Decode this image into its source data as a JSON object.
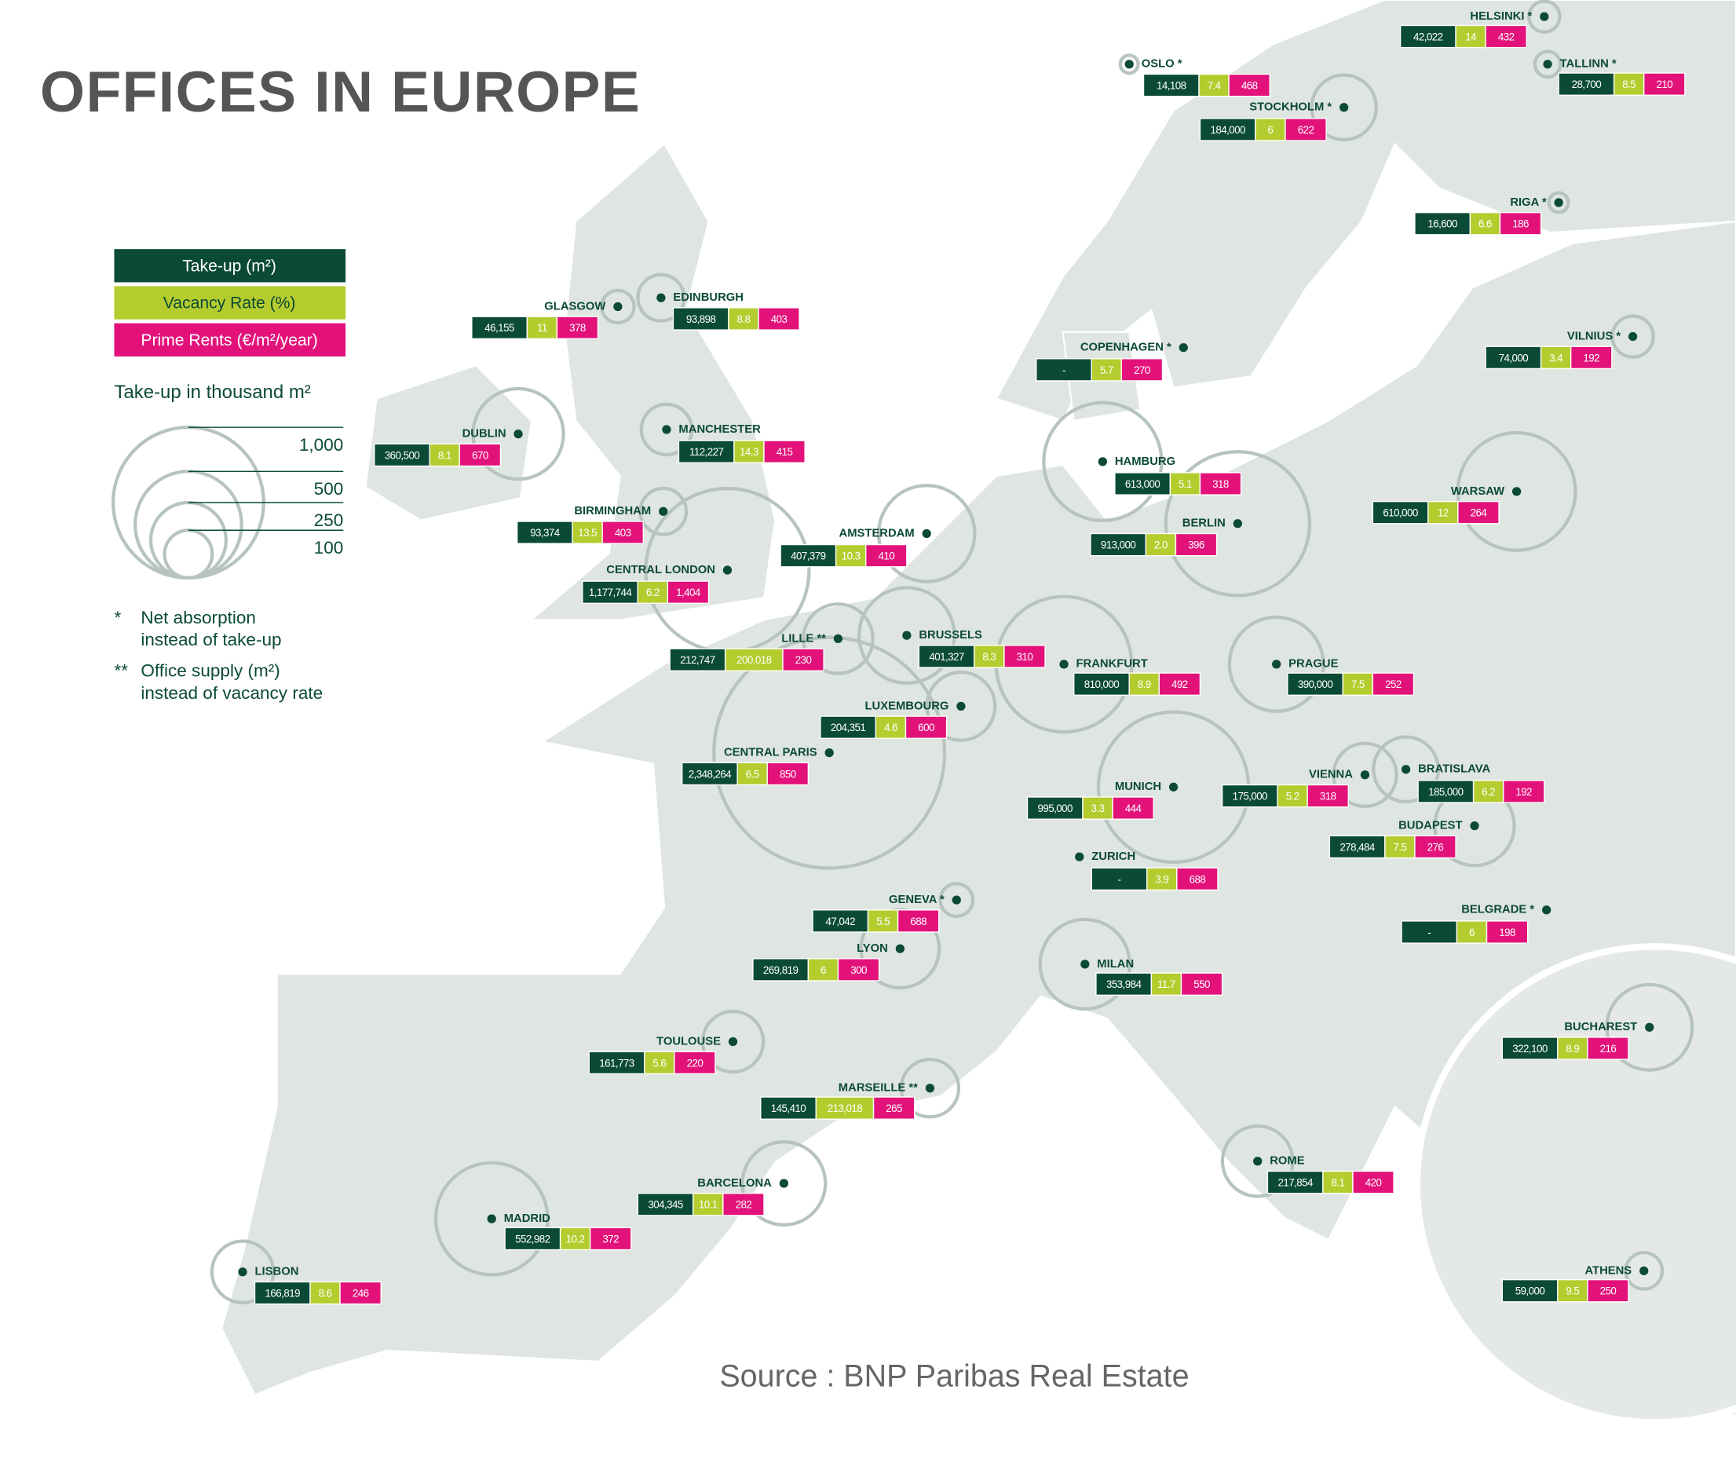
{
  "title": "OFFICES IN EUROPE",
  "legend": {
    "items": [
      "Take-up (m²)",
      "Vacancy Rate (%)",
      "Prime Rents (€/m²/year)"
    ],
    "size_title": "Take-up in thousand m²",
    "sizes": [
      {
        "value": 1000,
        "label": "1,000"
      },
      500,
      250,
      100
    ],
    "notes": [
      {
        "mark": "*",
        "lines": [
          "Net absorption",
          "instead of take-up"
        ]
      },
      {
        "mark": "**",
        "lines": [
          "Office supply (m²)",
          "instead of vacancy rate"
        ]
      }
    ]
  },
  "cities": [
    {
      "name": "HELSINKI *",
      "take_up": "42,022",
      "vacancy": "14",
      "rent": "432"
    },
    {
      "name": "OSLO *",
      "take_up": "14,108",
      "vacancy": "7.4",
      "rent": "468"
    },
    {
      "name": "TALLINN *",
      "take_up": "28,700",
      "vacancy": "8.5",
      "rent": "210"
    },
    {
      "name": "STOCKHOLM *",
      "take_up": "184,000",
      "vacancy": "6",
      "rent": "622"
    },
    {
      "name": "RIGA *",
      "take_up": "16,600",
      "vacancy": "6.6",
      "rent": "186"
    },
    {
      "name": "GLASGOW",
      "take_up": "46,155",
      "vacancy": "11",
      "rent": "378"
    },
    {
      "name": "EDINBURGH",
      "take_up": "93,898",
      "vacancy": "8.8",
      "rent": "403"
    },
    {
      "name": "COPENHAGEN *",
      "take_up": "-",
      "vacancy": "5.7",
      "rent": "270"
    },
    {
      "name": "VILNIUS *",
      "take_up": "74,000",
      "vacancy": "3.4",
      "rent": "192"
    },
    {
      "name": "DUBLIN",
      "take_up": "360,500",
      "vacancy": "8.1",
      "rent": "670"
    },
    {
      "name": "MANCHESTER",
      "take_up": "112,227",
      "vacancy": "14.3",
      "rent": "415"
    },
    {
      "name": "HAMBURG",
      "take_up": "613,000",
      "vacancy": "5.1",
      "rent": "318"
    },
    {
      "name": "WARSAW",
      "take_up": "610,000",
      "vacancy": "12",
      "rent": "264"
    },
    {
      "name": "BIRMINGHAM",
      "take_up": "93,374",
      "vacancy": "13.5",
      "rent": "403"
    },
    {
      "name": "BERLIN",
      "take_up": "913,000",
      "vacancy": "2.0",
      "rent": "396"
    },
    {
      "name": "AMSTERDAM",
      "take_up": "407,379",
      "vacancy": "10.3",
      "rent": "410"
    },
    {
      "name": "CENTRAL LONDON",
      "take_up": "1,177,744",
      "vacancy": "6.2",
      "rent": "1,404"
    },
    {
      "name": "LILLE **",
      "take_up": "212,747",
      "vacancy": "200,018",
      "rent": "230"
    },
    {
      "name": "BRUSSELS",
      "take_up": "401,327",
      "vacancy": "8.3",
      "rent": "310"
    },
    {
      "name": "FRANKFURT",
      "take_up": "810,000",
      "vacancy": "8.9",
      "rent": "492"
    },
    {
      "name": "PRAGUE",
      "take_up": "390,000",
      "vacancy": "7.5",
      "rent": "252"
    },
    {
      "name": "LUXEMBOURG",
      "take_up": "204,351",
      "vacancy": "4.6",
      "rent": "600"
    },
    {
      "name": "CENTRAL PARIS",
      "take_up": "2,348,264",
      "vacancy": "6.5",
      "rent": "850"
    },
    {
      "name": "VIENNA",
      "take_up": "175,000",
      "vacancy": "5.2",
      "rent": "318"
    },
    {
      "name": "BRATISLAVA",
      "take_up": "185,000",
      "vacancy": "6.2",
      "rent": "192"
    },
    {
      "name": "MUNICH",
      "take_up": "995,000",
      "vacancy": "3.3",
      "rent": "444"
    },
    {
      "name": "BUDAPEST",
      "take_up": "278,484",
      "vacancy": "7.5",
      "rent": "276"
    },
    {
      "name": "ZURICH",
      "take_up": "-",
      "vacancy": "3.9",
      "rent": "688"
    },
    {
      "name": "GENEVA *",
      "take_up": "47,042",
      "vacancy": "5.5",
      "rent": "688"
    },
    {
      "name": "BELGRADE *",
      "take_up": "-",
      "vacancy": "6",
      "rent": "198"
    },
    {
      "name": "LYON",
      "take_up": "269,819",
      "vacancy": "6",
      "rent": "300"
    },
    {
      "name": "MILAN",
      "take_up": "353,984",
      "vacancy": "11.7",
      "rent": "550"
    },
    {
      "name": "BUCHAREST",
      "take_up": "322,100",
      "vacancy": "8.9",
      "rent": "216"
    },
    {
      "name": "TOULOUSE",
      "take_up": "161,773",
      "vacancy": "5.6",
      "rent": "220"
    },
    {
      "name": "MARSEILLE **",
      "take_up": "145,410",
      "vacancy": "213,018",
      "rent": "265"
    },
    {
      "name": "ROME",
      "take_up": "217,854",
      "vacancy": "8.1",
      "rent": "420"
    },
    {
      "name": "BARCELONA",
      "take_up": "304,345",
      "vacancy": "10.1",
      "rent": "282"
    },
    {
      "name": "MADRID",
      "take_up": "552,982",
      "vacancy": "10.2",
      "rent": "372"
    },
    {
      "name": "LISBON",
      "take_up": "166,819",
      "vacancy": "8.6",
      "rent": "246"
    },
    {
      "name": "ATHENS",
      "take_up": "59,000",
      "vacancy": "9.5",
      "rent": "250"
    }
  ],
  "source": "Source : BNP Paribas Real Estate"
}
